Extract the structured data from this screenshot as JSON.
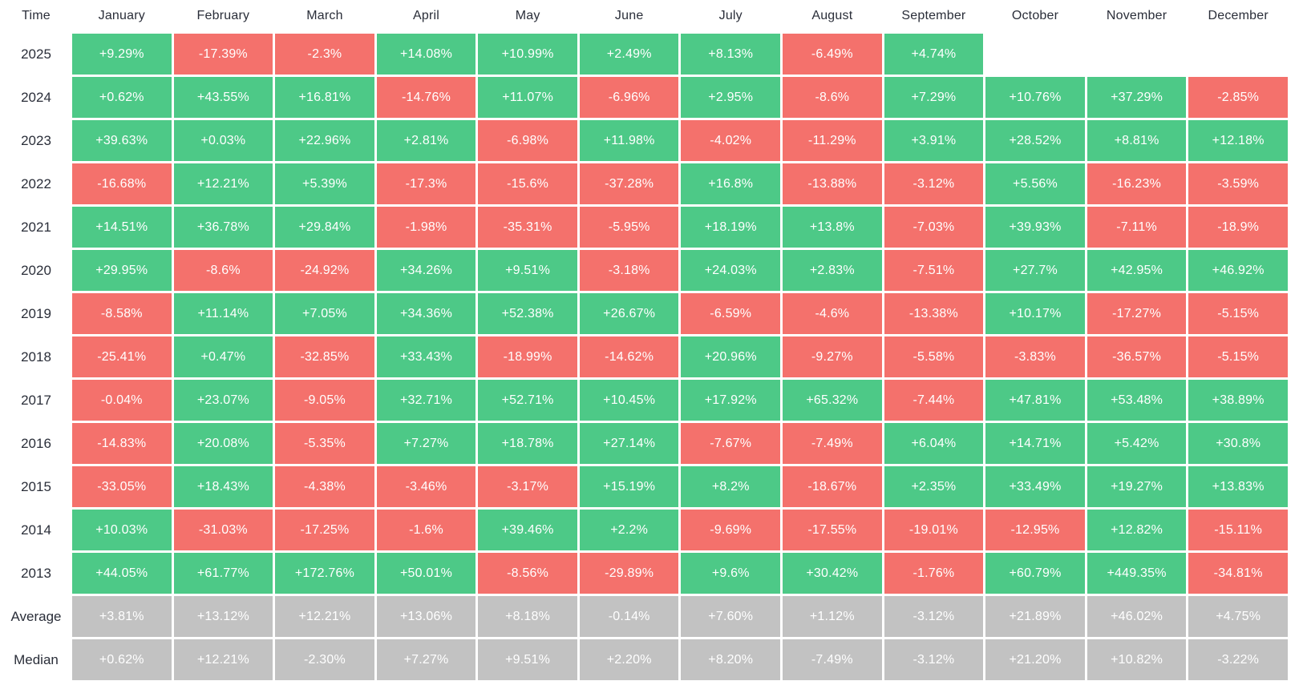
{
  "colors": {
    "positive": "#4DC987",
    "negative": "#F4716C",
    "stat": "#C2C2C2",
    "label_text": "#2A2E39",
    "cell_text": "#FFFFFF"
  },
  "table": {
    "columns": [
      "Time",
      "January",
      "February",
      "March",
      "April",
      "May",
      "June",
      "July",
      "August",
      "September",
      "October",
      "November",
      "December"
    ],
    "rows": [
      {
        "label": "2025",
        "kind": "year",
        "values": [
          "+9.29%",
          "-17.39%",
          "-2.3%",
          "+14.08%",
          "+10.99%",
          "+2.49%",
          "+8.13%",
          "-6.49%",
          "+4.74%",
          "",
          "",
          ""
        ]
      },
      {
        "label": "2024",
        "kind": "year",
        "values": [
          "+0.62%",
          "+43.55%",
          "+16.81%",
          "-14.76%",
          "+11.07%",
          "-6.96%",
          "+2.95%",
          "-8.6%",
          "+7.29%",
          "+10.76%",
          "+37.29%",
          "-2.85%"
        ]
      },
      {
        "label": "2023",
        "kind": "year",
        "values": [
          "+39.63%",
          "+0.03%",
          "+22.96%",
          "+2.81%",
          "-6.98%",
          "+11.98%",
          "-4.02%",
          "-11.29%",
          "+3.91%",
          "+28.52%",
          "+8.81%",
          "+12.18%"
        ]
      },
      {
        "label": "2022",
        "kind": "year",
        "values": [
          "-16.68%",
          "+12.21%",
          "+5.39%",
          "-17.3%",
          "-15.6%",
          "-37.28%",
          "+16.8%",
          "-13.88%",
          "-3.12%",
          "+5.56%",
          "-16.23%",
          "-3.59%"
        ]
      },
      {
        "label": "2021",
        "kind": "year",
        "values": [
          "+14.51%",
          "+36.78%",
          "+29.84%",
          "-1.98%",
          "-35.31%",
          "-5.95%",
          "+18.19%",
          "+13.8%",
          "-7.03%",
          "+39.93%",
          "-7.11%",
          "-18.9%"
        ]
      },
      {
        "label": "2020",
        "kind": "year",
        "values": [
          "+29.95%",
          "-8.6%",
          "-24.92%",
          "+34.26%",
          "+9.51%",
          "-3.18%",
          "+24.03%",
          "+2.83%",
          "-7.51%",
          "+27.7%",
          "+42.95%",
          "+46.92%"
        ]
      },
      {
        "label": "2019",
        "kind": "year",
        "values": [
          "-8.58%",
          "+11.14%",
          "+7.05%",
          "+34.36%",
          "+52.38%",
          "+26.67%",
          "-6.59%",
          "-4.6%",
          "-13.38%",
          "+10.17%",
          "-17.27%",
          "-5.15%"
        ]
      },
      {
        "label": "2018",
        "kind": "year",
        "values": [
          "-25.41%",
          "+0.47%",
          "-32.85%",
          "+33.43%",
          "-18.99%",
          "-14.62%",
          "+20.96%",
          "-9.27%",
          "-5.58%",
          "-3.83%",
          "-36.57%",
          "-5.15%"
        ]
      },
      {
        "label": "2017",
        "kind": "year",
        "values": [
          "-0.04%",
          "+23.07%",
          "-9.05%",
          "+32.71%",
          "+52.71%",
          "+10.45%",
          "+17.92%",
          "+65.32%",
          "-7.44%",
          "+47.81%",
          "+53.48%",
          "+38.89%"
        ]
      },
      {
        "label": "2016",
        "kind": "year",
        "values": [
          "-14.83%",
          "+20.08%",
          "-5.35%",
          "+7.27%",
          "+18.78%",
          "+27.14%",
          "-7.67%",
          "-7.49%",
          "+6.04%",
          "+14.71%",
          "+5.42%",
          "+30.8%"
        ]
      },
      {
        "label": "2015",
        "kind": "year",
        "values": [
          "-33.05%",
          "+18.43%",
          "-4.38%",
          "-3.46%",
          "-3.17%",
          "+15.19%",
          "+8.2%",
          "-18.67%",
          "+2.35%",
          "+33.49%",
          "+19.27%",
          "+13.83%"
        ]
      },
      {
        "label": "2014",
        "kind": "year",
        "values": [
          "+10.03%",
          "-31.03%",
          "-17.25%",
          "-1.6%",
          "+39.46%",
          "+2.2%",
          "-9.69%",
          "-17.55%",
          "-19.01%",
          "-12.95%",
          "+12.82%",
          "-15.11%"
        ]
      },
      {
        "label": "2013",
        "kind": "year",
        "values": [
          "+44.05%",
          "+61.77%",
          "+172.76%",
          "+50.01%",
          "-8.56%",
          "-29.89%",
          "+9.6%",
          "+30.42%",
          "-1.76%",
          "+60.79%",
          "+449.35%",
          "-34.81%"
        ]
      },
      {
        "label": "Average",
        "kind": "stat",
        "values": [
          "+3.81%",
          "+13.12%",
          "+12.21%",
          "+13.06%",
          "+8.18%",
          "-0.14%",
          "+7.60%",
          "+1.12%",
          "-3.12%",
          "+21.89%",
          "+46.02%",
          "+4.75%"
        ]
      },
      {
        "label": "Median",
        "kind": "stat",
        "values": [
          "+0.62%",
          "+12.21%",
          "-2.30%",
          "+7.27%",
          "+9.51%",
          "+2.20%",
          "+8.20%",
          "-7.49%",
          "-3.12%",
          "+21.20%",
          "+10.82%",
          "-3.22%"
        ]
      }
    ]
  },
  "chart_data": {
    "type": "heatmap",
    "x_labels": [
      "January",
      "February",
      "March",
      "April",
      "May",
      "June",
      "July",
      "August",
      "September",
      "October",
      "November",
      "December"
    ],
    "y_labels": [
      "2025",
      "2024",
      "2023",
      "2022",
      "2021",
      "2020",
      "2019",
      "2018",
      "2017",
      "2016",
      "2015",
      "2014",
      "2013",
      "Average",
      "Median"
    ],
    "value_unit": "percent",
    "values": [
      [
        9.29,
        -17.39,
        -2.3,
        14.08,
        10.99,
        2.49,
        8.13,
        -6.49,
        4.74,
        null,
        null,
        null
      ],
      [
        0.62,
        43.55,
        16.81,
        -14.76,
        11.07,
        -6.96,
        2.95,
        -8.6,
        7.29,
        10.76,
        37.29,
        -2.85
      ],
      [
        39.63,
        0.03,
        22.96,
        2.81,
        -6.98,
        11.98,
        -4.02,
        -11.29,
        3.91,
        28.52,
        8.81,
        12.18
      ],
      [
        -16.68,
        12.21,
        5.39,
        -17.3,
        -15.6,
        -37.28,
        16.8,
        -13.88,
        -3.12,
        5.56,
        -16.23,
        -3.59
      ],
      [
        14.51,
        36.78,
        29.84,
        -1.98,
        -35.31,
        -5.95,
        18.19,
        13.8,
        -7.03,
        39.93,
        -7.11,
        -18.9
      ],
      [
        29.95,
        -8.6,
        -24.92,
        34.26,
        9.51,
        -3.18,
        24.03,
        2.83,
        -7.51,
        27.7,
        42.95,
        46.92
      ],
      [
        -8.58,
        11.14,
        7.05,
        34.36,
        52.38,
        26.67,
        -6.59,
        -4.6,
        -13.38,
        10.17,
        -17.27,
        -5.15
      ],
      [
        -25.41,
        0.47,
        -32.85,
        33.43,
        -18.99,
        -14.62,
        20.96,
        -9.27,
        -5.58,
        -3.83,
        -36.57,
        -5.15
      ],
      [
        -0.04,
        23.07,
        -9.05,
        32.71,
        52.71,
        10.45,
        17.92,
        65.32,
        -7.44,
        47.81,
        53.48,
        38.89
      ],
      [
        -14.83,
        20.08,
        -5.35,
        7.27,
        18.78,
        27.14,
        -7.67,
        -7.49,
        6.04,
        14.71,
        5.42,
        30.8
      ],
      [
        -33.05,
        18.43,
        -4.38,
        -3.46,
        -3.17,
        15.19,
        8.2,
        -18.67,
        2.35,
        33.49,
        19.27,
        13.83
      ],
      [
        10.03,
        -31.03,
        -17.25,
        -1.6,
        39.46,
        2.2,
        -9.69,
        -17.55,
        -19.01,
        -12.95,
        12.82,
        -15.11
      ],
      [
        44.05,
        61.77,
        172.76,
        50.01,
        -8.56,
        -29.89,
        9.6,
        30.42,
        -1.76,
        60.79,
        449.35,
        -34.81
      ],
      [
        3.81,
        13.12,
        12.21,
        13.06,
        8.18,
        -0.14,
        7.6,
        1.12,
        -3.12,
        21.89,
        46.02,
        4.75
      ],
      [
        0.62,
        12.21,
        -2.3,
        7.27,
        9.51,
        2.2,
        8.2,
        -7.49,
        -3.12,
        21.2,
        10.82,
        -3.22
      ]
    ],
    "color_coding": "positive=green, negative=red, Average/Median rows=gray",
    "grid": false,
    "legend": false
  }
}
